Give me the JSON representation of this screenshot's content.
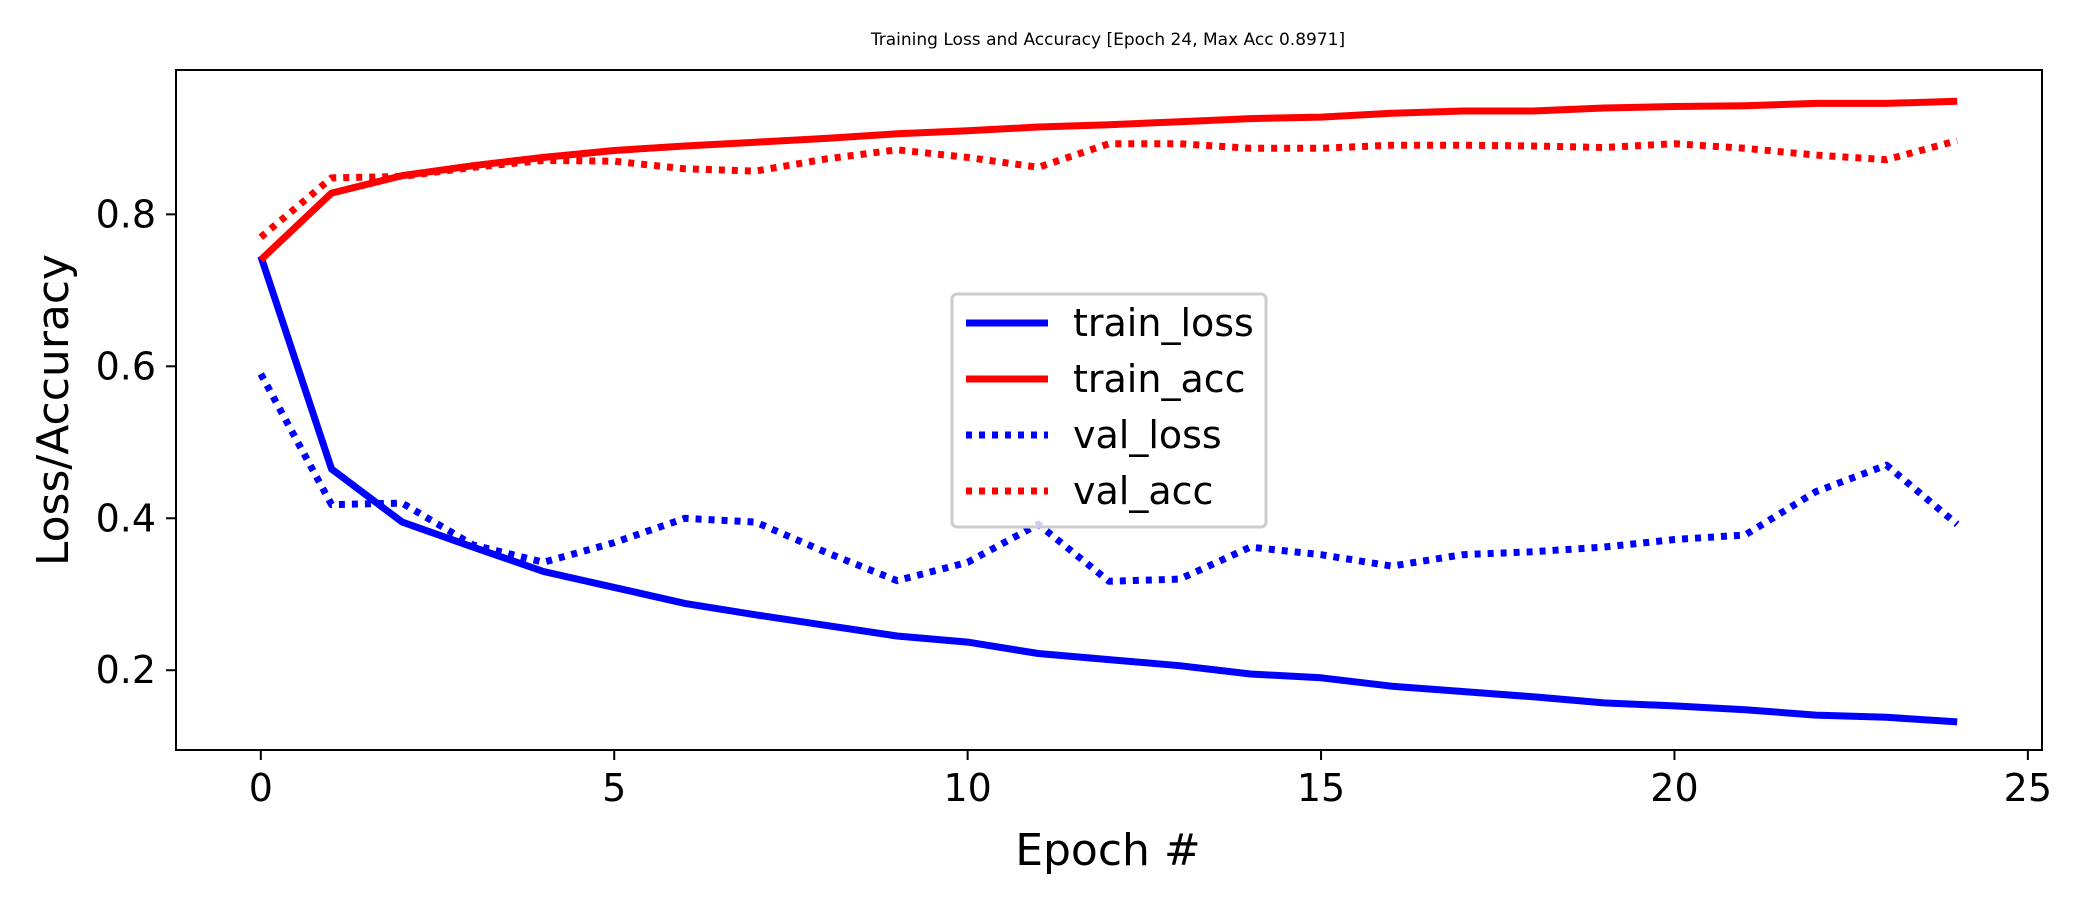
{
  "chart_data": {
    "type": "line",
    "title": "Training Loss and Accuracy [Epoch 24, Max Acc 0.8971]",
    "xlabel": "Epoch #",
    "ylabel": "Loss/Accuracy",
    "xlim": [
      -1.2,
      25.2
    ],
    "ylim": [
      0.095,
      0.99
    ],
    "xticks": [
      0,
      5,
      10,
      15,
      20,
      25
    ],
    "yticks": [
      0.2,
      0.4,
      0.6,
      0.8
    ],
    "grid": false,
    "legend_position": "center",
    "x": [
      0,
      1,
      2,
      3,
      4,
      5,
      6,
      7,
      8,
      9,
      10,
      11,
      12,
      13,
      14,
      15,
      16,
      17,
      18,
      19,
      20,
      21,
      22,
      23,
      24
    ],
    "series": [
      {
        "name": "train_loss",
        "color": "#0000ff",
        "style": "solid",
        "values": [
          0.745,
          0.465,
          0.395,
          0.362,
          0.33,
          0.309,
          0.288,
          0.273,
          0.259,
          0.245,
          0.237,
          0.222,
          0.214,
          0.206,
          0.195,
          0.19,
          0.179,
          0.172,
          0.165,
          0.157,
          0.153,
          0.148,
          0.141,
          0.138,
          0.132
        ]
      },
      {
        "name": "train_acc",
        "color": "#ff0000",
        "style": "solid",
        "values": [
          0.74,
          0.828,
          0.851,
          0.864,
          0.875,
          0.884,
          0.89,
          0.895,
          0.9,
          0.906,
          0.91,
          0.915,
          0.918,
          0.922,
          0.926,
          0.928,
          0.933,
          0.936,
          0.936,
          0.94,
          0.942,
          0.943,
          0.946,
          0.946,
          0.949
        ]
      },
      {
        "name": "val_loss",
        "color": "#0000ff",
        "style": "dotted",
        "values": [
          0.59,
          0.418,
          0.42,
          0.365,
          0.342,
          0.368,
          0.4,
          0.395,
          0.355,
          0.318,
          0.342,
          0.392,
          0.317,
          0.32,
          0.362,
          0.352,
          0.337,
          0.352,
          0.356,
          0.362,
          0.372,
          0.378,
          0.435,
          0.47,
          0.392
        ]
      },
      {
        "name": "val_acc",
        "color": "#ff0000",
        "style": "dotted",
        "values": [
          0.77,
          0.848,
          0.85,
          0.862,
          0.871,
          0.87,
          0.86,
          0.857,
          0.873,
          0.885,
          0.875,
          0.862,
          0.893,
          0.893,
          0.887,
          0.887,
          0.891,
          0.891,
          0.89,
          0.888,
          0.893,
          0.887,
          0.878,
          0.872,
          0.897
        ]
      }
    ]
  }
}
